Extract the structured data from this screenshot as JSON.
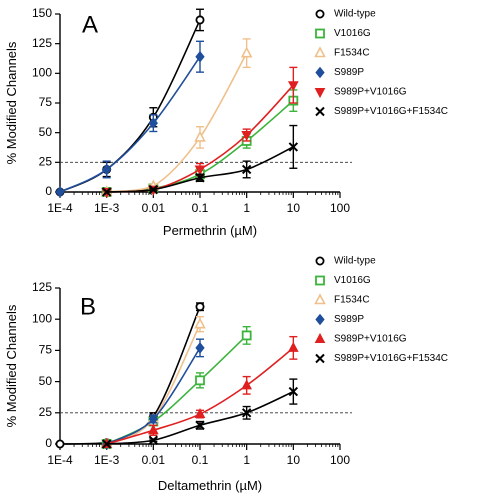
{
  "chart_data": [
    {
      "type": "line",
      "panel_label": "A",
      "xlabel": "Permethrin (µM)",
      "ylabel": "% Modified Channels",
      "x_scale": "log",
      "xlim": [
        0.0001,
        100
      ],
      "ylim": [
        0,
        150
      ],
      "x_ticks": [
        0.0001,
        0.001,
        0.01,
        0.1,
        1,
        10,
        100
      ],
      "x_tick_labels": [
        "1E-4",
        "1E-3",
        "0.01",
        "0.1",
        "1",
        "10",
        "100"
      ],
      "y_ticks": [
        0,
        25,
        50,
        75,
        100,
        125,
        150
      ],
      "y_tick_labels": [
        "0",
        "25",
        "50",
        "75",
        "100",
        "125",
        "150"
      ],
      "reference_line_y": 25,
      "grid": false,
      "legend_position": "right",
      "series": [
        {
          "name": "Wild-type",
          "marker": "open-circle",
          "color": "#000000",
          "x": [
            0.0001,
            0.001,
            0.01,
            0.1
          ],
          "y": [
            0,
            19,
            63,
            145
          ],
          "err": [
            0,
            6,
            8,
            9
          ]
        },
        {
          "name": "V1016G",
          "marker": "open-square",
          "color": "#3cb43c",
          "x": [
            0.001,
            0.01,
            0.1,
            1,
            10
          ],
          "y": [
            0,
            3,
            15,
            43,
            77
          ],
          "err": [
            0,
            1,
            5,
            6,
            9
          ]
        },
        {
          "name": "F1534C",
          "marker": "open-triangle",
          "color": "#f0c08c",
          "x": [
            0.001,
            0.01,
            0.1,
            1
          ],
          "y": [
            0,
            5,
            46,
            117
          ],
          "err": [
            0,
            1,
            9,
            12
          ]
        },
        {
          "name": "S989P",
          "marker": "filled-diamond",
          "color": "#1f4e9c",
          "x": [
            0.0001,
            0.001,
            0.01,
            0.1
          ],
          "y": [
            0,
            19,
            58,
            114
          ],
          "err": [
            0,
            7,
            7,
            13
          ]
        },
        {
          "name": "S989P+V1016G",
          "marker": "filled-triangle-down",
          "color": "#e02020",
          "x": [
            0.001,
            0.01,
            0.1,
            1,
            10
          ],
          "y": [
            0,
            2,
            19,
            48,
            90
          ],
          "err": [
            0,
            1,
            5,
            5,
            15
          ]
        },
        {
          "name": "S989P+V1016G+F1534C",
          "marker": "x",
          "color": "#000000",
          "x": [
            0.001,
            0.01,
            0.1,
            1,
            10
          ],
          "y": [
            0,
            2,
            12,
            19,
            38
          ],
          "err": [
            0,
            1,
            3,
            7,
            18
          ]
        }
      ]
    },
    {
      "type": "line",
      "panel_label": "B",
      "xlabel": "Deltamethrin (µM)",
      "ylabel": "% Modified Channels",
      "x_scale": "log",
      "xlim": [
        0.0001,
        100
      ],
      "ylim": [
        0,
        125
      ],
      "x_ticks": [
        0.0001,
        0.001,
        0.01,
        0.1,
        1,
        10,
        100
      ],
      "x_tick_labels": [
        "1E-4",
        "1E-3",
        "0.01",
        "0.1",
        "1",
        "10",
        "100"
      ],
      "y_ticks": [
        0,
        25,
        50,
        75,
        100,
        125
      ],
      "y_tick_labels": [
        "0",
        "25",
        "50",
        "75",
        "100",
        "125"
      ],
      "reference_line_y": 25,
      "grid": false,
      "legend_position": "right",
      "series": [
        {
          "name": "Wild-type",
          "marker": "open-circle",
          "color": "#000000",
          "x": [
            0.0001,
            0.001,
            0.01,
            0.1
          ],
          "y": [
            0,
            1,
            22,
            110
          ],
          "err": [
            0,
            1,
            3,
            3
          ]
        },
        {
          "name": "V1016G",
          "marker": "open-square",
          "color": "#3cb43c",
          "x": [
            0.001,
            0.01,
            0.1,
            1
          ],
          "y": [
            0,
            18,
            51,
            87
          ],
          "err": [
            0,
            3,
            6,
            7
          ]
        },
        {
          "name": "F1534C",
          "marker": "open-triangle",
          "color": "#f0c08c",
          "x": [
            0.001,
            0.01,
            0.1
          ],
          "y": [
            0,
            20,
            96
          ],
          "err": [
            0,
            3,
            6
          ]
        },
        {
          "name": "S989P",
          "marker": "filled-diamond",
          "color": "#1f4e9c",
          "x": [
            0.001,
            0.01,
            0.1
          ],
          "y": [
            0,
            20,
            77
          ],
          "err": [
            0,
            3,
            7
          ]
        },
        {
          "name": "S989P+V1016G",
          "marker": "filled-triangle-up",
          "color": "#e02020",
          "x": [
            0.001,
            0.01,
            0.1,
            1,
            10
          ],
          "y": [
            0,
            11,
            24,
            47,
            77
          ],
          "err": [
            0,
            4,
            3,
            7,
            9
          ]
        },
        {
          "name": "S989P+V1016G+F1534C",
          "marker": "x",
          "color": "#000000",
          "x": [
            0.001,
            0.01,
            0.1,
            1,
            10
          ],
          "y": [
            0,
            3,
            15,
            25,
            42
          ],
          "err": [
            0,
            1,
            3,
            5,
            10
          ]
        }
      ]
    }
  ]
}
